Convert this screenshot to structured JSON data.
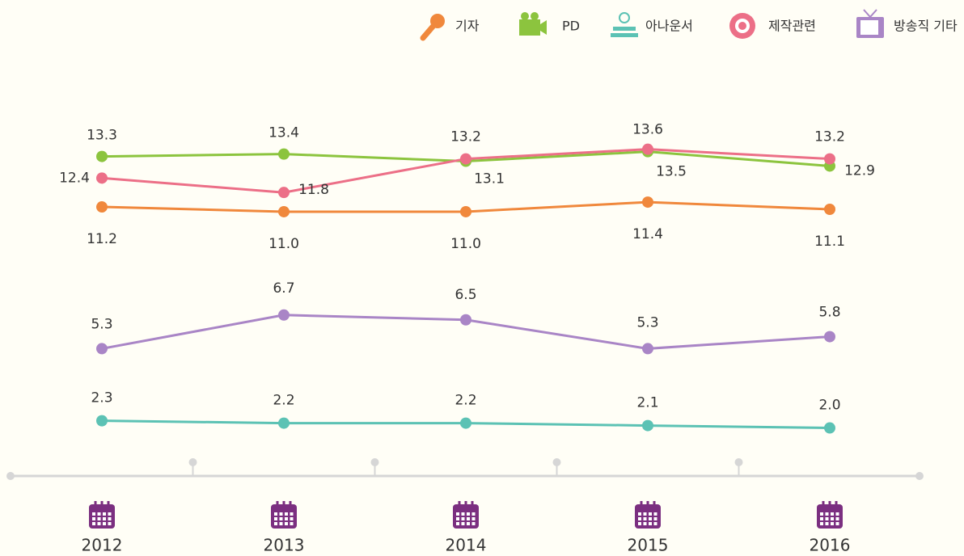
{
  "chart_data": {
    "type": "line",
    "categories": [
      "2012",
      "2013",
      "2014",
      "2015",
      "2016"
    ],
    "series": [
      {
        "name": "기자",
        "color": "#f0883c",
        "values": [
          11.2,
          11.0,
          11.0,
          11.4,
          11.1
        ]
      },
      {
        "name": "PD",
        "color": "#8cc43e",
        "values": [
          13.3,
          13.4,
          13.1,
          13.5,
          12.9
        ]
      },
      {
        "name": "아나운서",
        "color": "#5cc2b4",
        "values": [
          2.3,
          2.2,
          2.2,
          2.1,
          2.0
        ]
      },
      {
        "name": "제작관련",
        "color": "#ec6f87",
        "values": [
          12.4,
          11.8,
          13.2,
          13.6,
          13.2
        ]
      },
      {
        "name": "방송직 기타",
        "color": "#a985c6",
        "values": [
          5.3,
          6.7,
          6.5,
          5.3,
          5.8
        ]
      }
    ],
    "value_labels": [
      [
        "11.2",
        "11.0",
        "11.0",
        "11.4",
        "11.1"
      ],
      [
        "13.3",
        "13.4",
        "13.1",
        "13.5",
        "12.9"
      ],
      [
        "2.3",
        "2.2",
        "2.2",
        "2.1",
        "2.0"
      ],
      [
        "12.4",
        "11.8",
        "13.2",
        "13.6",
        "13.2"
      ],
      [
        "5.3",
        "6.7",
        "6.5",
        "5.3",
        "5.8"
      ]
    ]
  }
}
